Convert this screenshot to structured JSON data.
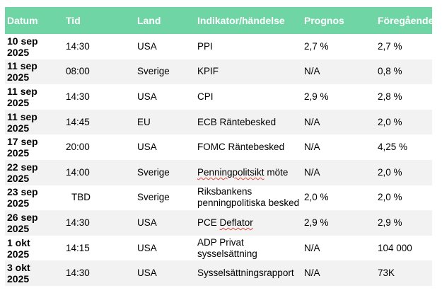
{
  "headers": [
    "Datum",
    "Tid",
    "Land",
    "Indikator/händelse",
    "Prognos",
    "Föregående"
  ],
  "rows": [
    {
      "date": [
        "10 sep",
        "2025"
      ],
      "time": "14:30",
      "country": "USA",
      "indicator": [
        "PPI"
      ],
      "forecast": "2,7 %",
      "previous": "2,7 %"
    },
    {
      "date": [
        "11 sep",
        "2025"
      ],
      "time": "08:00",
      "country": "Sverige",
      "indicator": [
        "KPIF"
      ],
      "forecast": "N/A",
      "previous": "0,8 %"
    },
    {
      "date": [
        "11 sep",
        "2025"
      ],
      "time": "14:30",
      "country": "USA",
      "indicator": [
        "CPI"
      ],
      "forecast": "2,9 %",
      "previous": "2,8 %"
    },
    {
      "date": [
        "11 sep",
        "2025"
      ],
      "time": "14:45",
      "country": "EU",
      "indicator": [
        "ECB Räntebesked"
      ],
      "forecast": "N/A",
      "previous": "2,0 %"
    },
    {
      "date": [
        "17 sep",
        "2025"
      ],
      "time": "20:00",
      "country": "USA",
      "indicator": [
        "FOMC Räntebesked"
      ],
      "forecast": "N/A",
      "previous": "4,25 %"
    },
    {
      "date": [
        "22 sep",
        "2025"
      ],
      "time": "14:00",
      "country": "Sverige",
      "indicator": [
        "Penningpolitsikt möte"
      ],
      "forecast": "N/A",
      "previous": "2,0 %"
    },
    {
      "date": [
        "23 sep",
        "2025"
      ],
      "time": "TBD",
      "country": "Sverige",
      "indicator": [
        "Riksbankens",
        "penningpolitiska besked"
      ],
      "forecast": "2,0 %",
      "previous": "2,0 %"
    },
    {
      "date": [
        "26 sep",
        "2025"
      ],
      "time": "14:30",
      "country": "USA",
      "indicator": [
        "PCE Deflator"
      ],
      "forecast": "2,9 %",
      "previous": "2,9 %"
    },
    {
      "date": [
        "1 okt",
        "2025"
      ],
      "time": "14:15",
      "country": "USA",
      "indicator": [
        "ADP Privat",
        "sysselsättning"
      ],
      "forecast": "N/A",
      "previous": "104 000"
    },
    {
      "date": [
        "3 okt",
        "2025"
      ],
      "time": "14:30",
      "country": "USA",
      "indicator": [
        "Sysselsättningsrapport"
      ],
      "forecast": "N/A",
      "previous": "73K"
    }
  ]
}
